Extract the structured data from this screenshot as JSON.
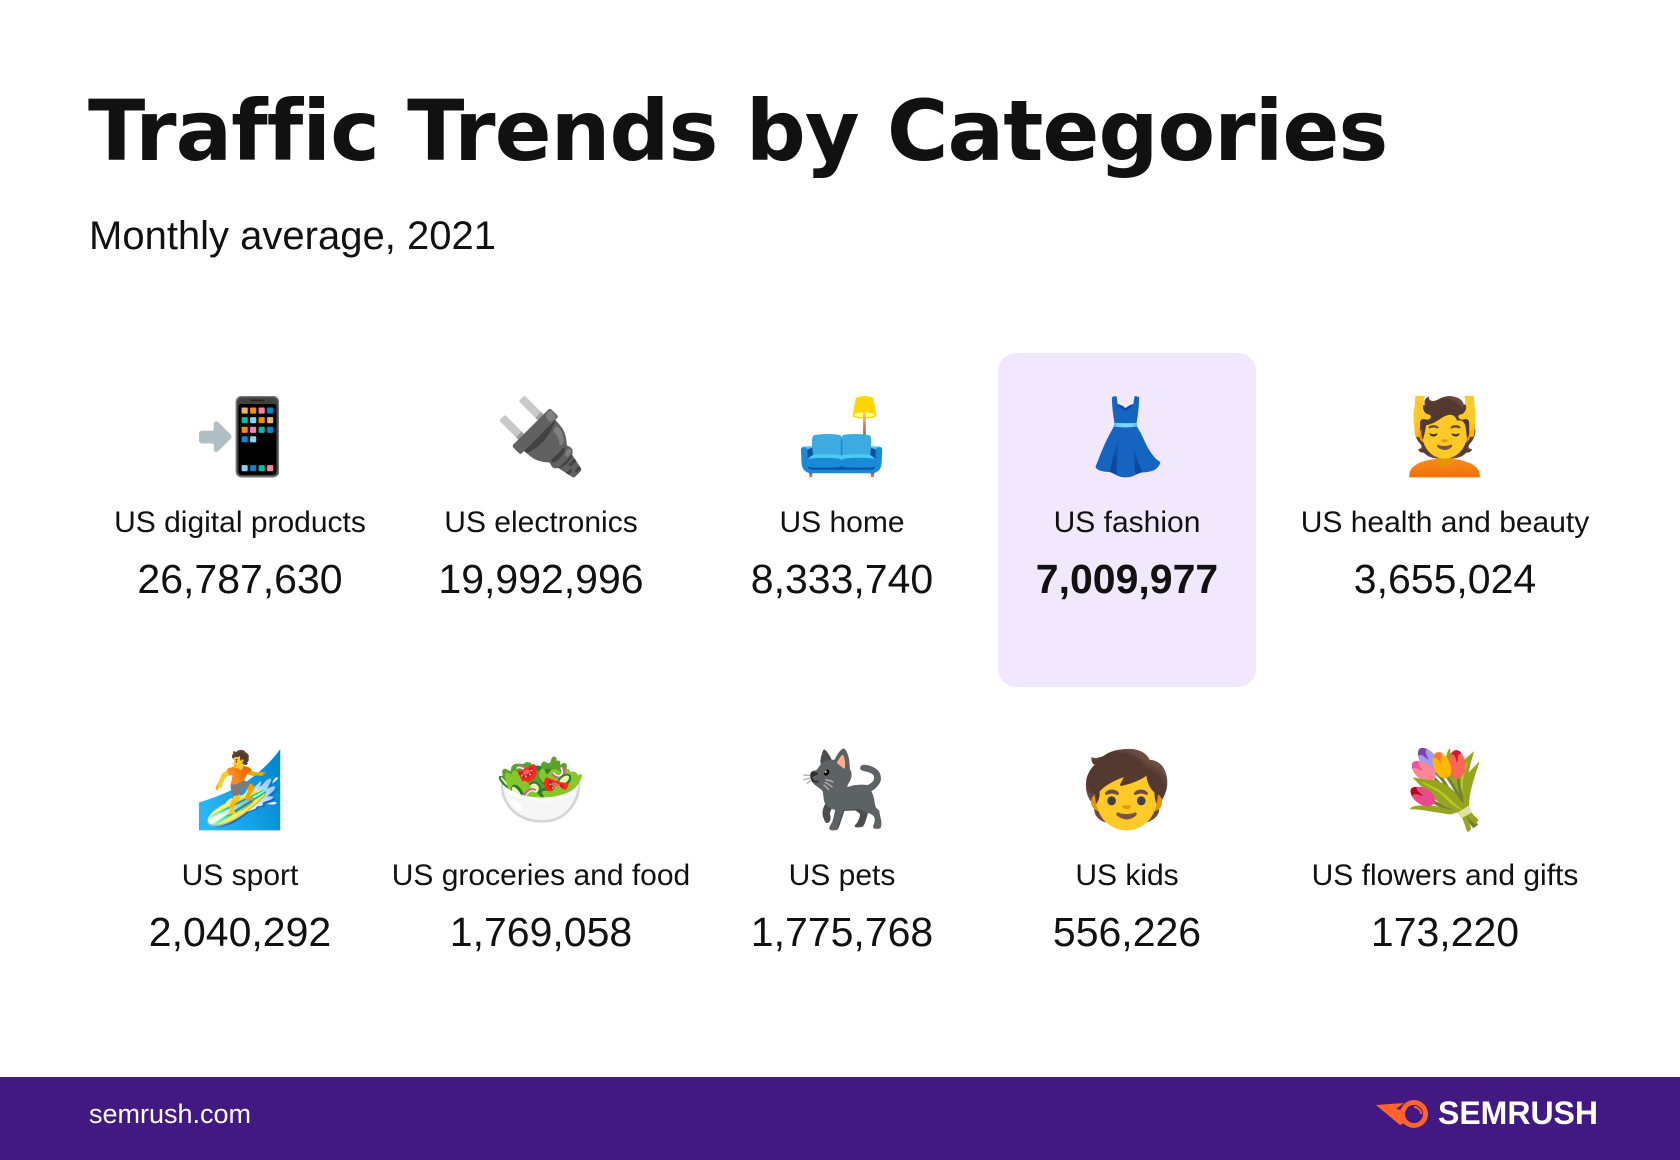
{
  "header": {
    "title": "Traffic Trends by Categories",
    "subtitle": "Monthly average, 2021"
  },
  "accent_highlight": "#f1e8fe",
  "footer_color": "#421983",
  "categories": [
    {
      "label": "US digital products",
      "value": "26,787,630",
      "icon": "📲",
      "icon_name": "mobile-phone-arrow"
    },
    {
      "label": "US electronics",
      "value": "19,992,996",
      "icon": "🔌",
      "icon_name": "electric-plug"
    },
    {
      "label": "US home",
      "value": "8,333,740",
      "icon": "🛋️",
      "icon_name": "couch-and-lamp"
    },
    {
      "label": "US fashion",
      "value": "7,009,977",
      "icon": "👗",
      "icon_name": "dress",
      "highlighted": true
    },
    {
      "label": "US health and beauty",
      "value": "3,655,024",
      "icon": "💆",
      "icon_name": "person-massage"
    },
    {
      "label": "US sport",
      "value": "2,040,292",
      "icon": "🏄",
      "icon_name": "surfer"
    },
    {
      "label": "US groceries and food",
      "value": "1,769,058",
      "icon": "🥗",
      "icon_name": "salad"
    },
    {
      "label": "US pets",
      "value": "1,775,768",
      "icon": "🐈‍⬛",
      "icon_name": "black-cat"
    },
    {
      "label": "US kids",
      "value": "556,226",
      "icon": "🧒",
      "icon_name": "child"
    },
    {
      "label": "US flowers and gifts",
      "value": "173,220",
      "icon": "💐",
      "icon_name": "bouquet"
    }
  ],
  "footer": {
    "site": "semrush.com",
    "brand": "SEMRUSH"
  }
}
